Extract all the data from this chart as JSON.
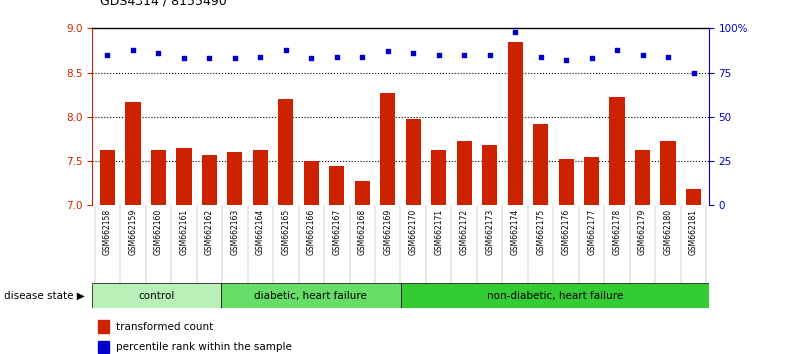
{
  "title": "GDS4314 / 8155490",
  "samples": [
    "GSM662158",
    "GSM662159",
    "GSM662160",
    "GSM662161",
    "GSM662162",
    "GSM662163",
    "GSM662164",
    "GSM662165",
    "GSM662166",
    "GSM662167",
    "GSM662168",
    "GSM662169",
    "GSM662170",
    "GSM662171",
    "GSM662172",
    "GSM662173",
    "GSM662174",
    "GSM662175",
    "GSM662176",
    "GSM662177",
    "GSM662178",
    "GSM662179",
    "GSM662180",
    "GSM662181"
  ],
  "bar_values": [
    7.63,
    8.17,
    7.62,
    7.65,
    7.57,
    7.6,
    7.62,
    8.2,
    7.5,
    7.44,
    7.28,
    8.27,
    7.98,
    7.63,
    7.73,
    7.68,
    8.85,
    7.92,
    7.52,
    7.55,
    8.22,
    7.62,
    7.73,
    7.18
  ],
  "dot_values": [
    85,
    88,
    86,
    83,
    83,
    83,
    84,
    88,
    83,
    84,
    84,
    87,
    86,
    85,
    85,
    85,
    98,
    84,
    82,
    83,
    88,
    85,
    84,
    75
  ],
  "groups": [
    {
      "label": "control",
      "start": 0,
      "end": 5
    },
    {
      "label": "diabetic, heart failure",
      "start": 5,
      "end": 12
    },
    {
      "label": "non-diabetic, heart failure",
      "start": 12,
      "end": 24
    }
  ],
  "group_colors": [
    "#b8f0b8",
    "#66dd66",
    "#33cc33"
  ],
  "ylim_left": [
    7.0,
    9.0
  ],
  "ylim_right": [
    0,
    100
  ],
  "yticks_left": [
    7.0,
    7.5,
    8.0,
    8.5,
    9.0
  ],
  "yticks_right": [
    0,
    25,
    50,
    75,
    100
  ],
  "ytick_labels_right": [
    "0",
    "25",
    "50",
    "75",
    "100%"
  ],
  "hlines": [
    7.5,
    8.0,
    8.5
  ],
  "bar_color": "#cc2200",
  "dot_color": "#0000cc",
  "tick_bg_color": "#c8c8c8",
  "legend_bar_label": "transformed count",
  "legend_dot_label": "percentile rank within the sample",
  "disease_state_label": "disease state"
}
